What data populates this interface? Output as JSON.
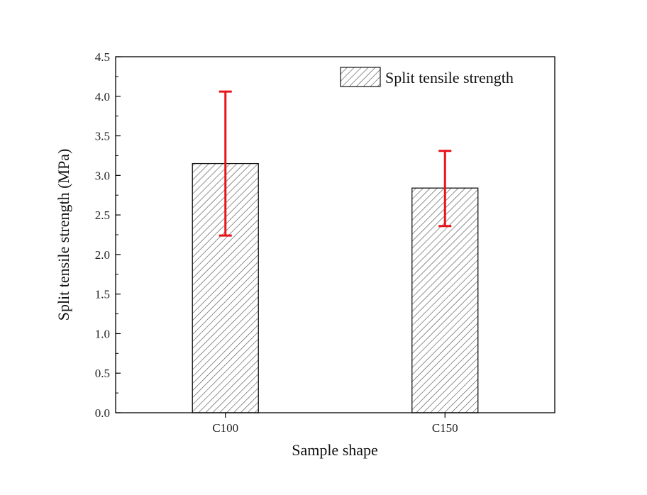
{
  "chart_data": {
    "type": "bar",
    "title": "",
    "xlabel": "Sample shape",
    "ylabel": "Split tensile strength (MPa)",
    "ylim": [
      0,
      4.5
    ],
    "yticks": [
      "0.0",
      "0.5",
      "1.0",
      "1.5",
      "2.0",
      "2.5",
      "3.0",
      "3.5",
      "4.0",
      "4.5"
    ],
    "categories": [
      "C100",
      "C150"
    ],
    "series": [
      {
        "name": "Split tensile strength",
        "values": [
          3.15,
          2.84
        ],
        "error_low": [
          2.24,
          2.36
        ],
        "error_high": [
          4.06,
          3.31
        ]
      }
    ],
    "legend_position": "top-right",
    "grid": false,
    "colors": {
      "bar_fill": "#ffffff",
      "hatch": "#555555",
      "bar_edge": "#111111",
      "error_bar": "#e8141b",
      "axis": "#000000"
    }
  }
}
